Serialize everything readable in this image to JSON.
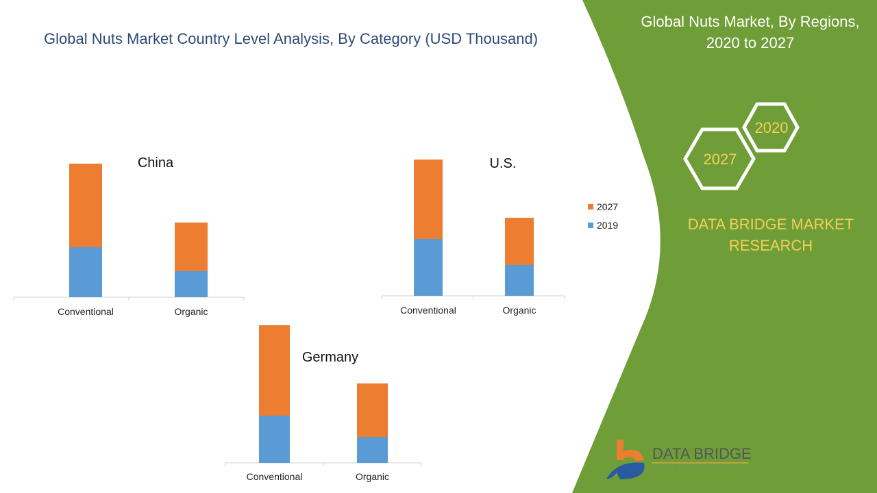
{
  "title": "Global Nuts Market Country Level Analysis, By Category (USD Thousand)",
  "side_panel": {
    "title": "Global Nuts Market, By Regions, 2020 to 2027",
    "hex_labels": [
      "2020",
      "2027"
    ],
    "brand_text": "DATA BRIDGE MARKET RESEARCH",
    "logo_text": "DATA BRIDGE",
    "logo_subtext": "MARKET RESEARCH",
    "panel_color": "#6f9e38",
    "accent_color": "#f2cf55"
  },
  "legend": [
    {
      "label": "2027",
      "color": "#ed7d31"
    },
    {
      "label": "2019",
      "color": "#5b9bd5"
    }
  ],
  "chart_data": [
    {
      "type": "bar",
      "stacked": true,
      "title": "China",
      "categories": [
        "Conventional",
        "Organic"
      ],
      "series": [
        {
          "name": "2019",
          "values": [
            73,
            38
          ]
        },
        {
          "name": "2027",
          "values": [
            122,
            71
          ]
        }
      ],
      "ylim": [
        0,
        200
      ],
      "grid": false
    },
    {
      "type": "bar",
      "stacked": true,
      "title": "U.S.",
      "categories": [
        "Conventional",
        "Organic"
      ],
      "series": [
        {
          "name": "2019",
          "values": [
            83,
            45
          ]
        },
        {
          "name": "2027",
          "values": [
            116,
            69
          ]
        }
      ],
      "ylim": [
        0,
        200
      ],
      "grid": false
    },
    {
      "type": "bar",
      "stacked": true,
      "title": "Germany",
      "categories": [
        "Conventional",
        "Organic"
      ],
      "series": [
        {
          "name": "2019",
          "values": [
            69,
            38
          ]
        },
        {
          "name": "2027",
          "values": [
            132,
            78
          ]
        }
      ],
      "ylim": [
        0,
        200
      ],
      "grid": false
    }
  ]
}
